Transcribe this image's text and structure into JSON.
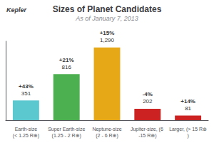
{
  "chart_data": {
    "type": "bar",
    "title": "Sizes of Planet Candidates",
    "subtitle": "As of January 7, 2013",
    "annotations": [
      "Kepler"
    ],
    "categories": [
      "Earth-size",
      "Super Earth-size",
      "Neptune-size",
      "Jupiter-size, (6 -15 R⊕)",
      "Larger, (> 15 R⊕)"
    ],
    "ranges": [
      "(< 1.25 R⊕)",
      "(1.25 - 2 R⊕)",
      "(2 - 6 R⊕)",
      null,
      null
    ],
    "changes": [
      "+43%",
      "+21%",
      "+15%",
      "-4%",
      "+14%"
    ],
    "values": [
      351,
      816,
      1290,
      202,
      81
    ],
    "value_labels": [
      "351",
      "816",
      "1,290",
      "202",
      "81"
    ],
    "colors": [
      "#5bc8d0",
      "#4caf50",
      "#e6a817",
      "#cc2222",
      "#cc2222"
    ],
    "data_labels": true,
    "ylim": [
      0,
      1400
    ],
    "grid": false,
    "tick_labels": "x"
  }
}
